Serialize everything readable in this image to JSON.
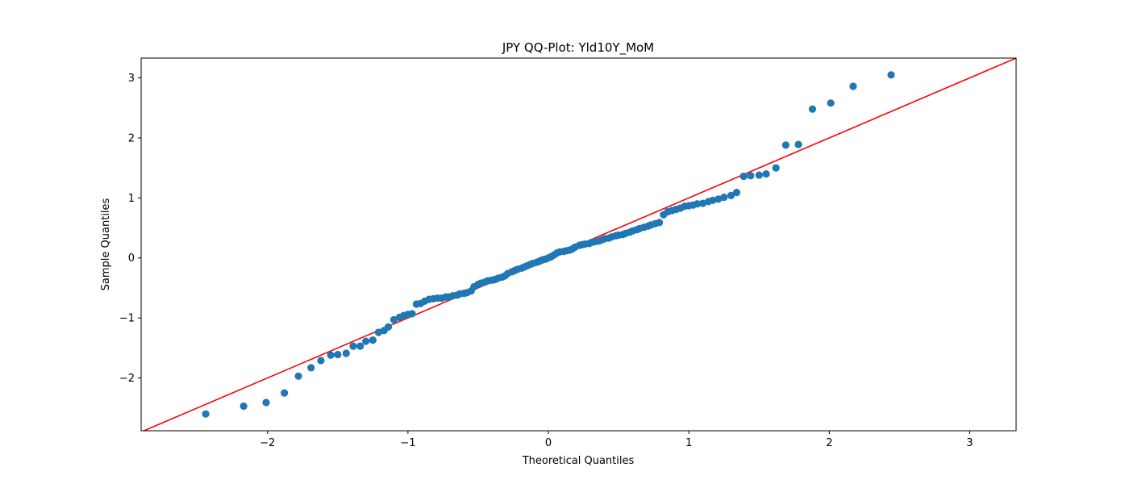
{
  "chart_data": {
    "type": "scatter",
    "title": "JPY QQ-Plot: Yld10Y_MoM",
    "xlabel": "Theoretical Quantiles",
    "ylabel": "Sample Quantiles",
    "xlim": [
      -2.9,
      3.33
    ],
    "ylim": [
      -2.88,
      3.33
    ],
    "xticks": [
      -2,
      -1,
      0,
      1,
      2,
      3
    ],
    "xtick_labels": [
      "−2",
      "−1",
      "0",
      "1",
      "2",
      "3"
    ],
    "yticks": [
      -2,
      -1,
      0,
      1,
      2,
      3
    ],
    "ytick_labels": [
      "−2",
      "−1",
      "0",
      "1",
      "2",
      "3"
    ],
    "grid": false,
    "colors": {
      "points": "#1f77b4",
      "line": "#ff0000"
    },
    "reference_line": {
      "slope": 1.0,
      "intercept": 0.0
    },
    "points": [
      [
        -2.44,
        -2.6
      ],
      [
        -2.17,
        -2.47
      ],
      [
        -2.01,
        -2.41
      ],
      [
        -1.88,
        -2.25
      ],
      [
        -1.78,
        -1.97
      ],
      [
        -1.69,
        -1.83
      ],
      [
        -1.62,
        -1.71
      ],
      [
        -1.55,
        -1.62
      ],
      [
        -1.5,
        -1.61
      ],
      [
        -1.44,
        -1.59
      ],
      [
        -1.39,
        -1.47
      ],
      [
        -1.34,
        -1.47
      ],
      [
        -1.3,
        -1.39
      ],
      [
        -1.25,
        -1.37
      ],
      [
        -1.21,
        -1.24
      ],
      [
        -1.17,
        -1.21
      ],
      [
        -1.14,
        -1.15
      ],
      [
        -1.1,
        -1.03
      ],
      [
        -1.06,
        -0.99
      ],
      [
        -1.03,
        -0.96
      ],
      [
        -1.0,
        -0.94
      ],
      [
        -0.97,
        -0.93
      ],
      [
        -0.94,
        -0.77
      ],
      [
        -0.91,
        -0.76
      ],
      [
        -0.88,
        -0.72
      ],
      [
        -0.85,
        -0.69
      ],
      [
        -0.82,
        -0.68
      ],
      [
        -0.79,
        -0.67
      ],
      [
        -0.76,
        -0.67
      ],
      [
        -0.73,
        -0.65
      ],
      [
        -0.71,
        -0.65
      ],
      [
        -0.68,
        -0.63
      ],
      [
        -0.65,
        -0.62
      ],
      [
        -0.63,
        -0.6
      ],
      [
        -0.6,
        -0.59
      ],
      [
        -0.58,
        -0.58
      ],
      [
        -0.55,
        -0.55
      ],
      [
        -0.53,
        -0.48
      ],
      [
        -0.5,
        -0.44
      ],
      [
        -0.48,
        -0.42
      ],
      [
        -0.45,
        -0.4
      ],
      [
        -0.43,
        -0.38
      ],
      [
        -0.4,
        -0.37
      ],
      [
        -0.38,
        -0.36
      ],
      [
        -0.36,
        -0.34
      ],
      [
        -0.33,
        -0.32
      ],
      [
        -0.31,
        -0.3
      ],
      [
        -0.29,
        -0.26
      ],
      [
        -0.26,
        -0.23
      ],
      [
        -0.24,
        -0.21
      ],
      [
        -0.22,
        -0.19
      ],
      [
        -0.19,
        -0.17
      ],
      [
        -0.17,
        -0.15
      ],
      [
        -0.15,
        -0.13
      ],
      [
        -0.13,
        -0.11
      ],
      [
        -0.11,
        -0.09
      ],
      [
        -0.08,
        -0.07
      ],
      [
        -0.06,
        -0.05
      ],
      [
        -0.04,
        -0.03
      ],
      [
        -0.02,
        -0.02
      ],
      [
        0.0,
        0.0
      ],
      [
        0.02,
        0.02
      ],
      [
        0.04,
        0.05
      ],
      [
        0.06,
        0.08
      ],
      [
        0.08,
        0.1
      ],
      [
        0.11,
        0.11
      ],
      [
        0.13,
        0.12
      ],
      [
        0.15,
        0.13
      ],
      [
        0.17,
        0.15
      ],
      [
        0.19,
        0.18
      ],
      [
        0.22,
        0.21
      ],
      [
        0.24,
        0.22
      ],
      [
        0.26,
        0.23
      ],
      [
        0.29,
        0.24
      ],
      [
        0.31,
        0.26
      ],
      [
        0.33,
        0.27
      ],
      [
        0.36,
        0.28
      ],
      [
        0.38,
        0.3
      ],
      [
        0.4,
        0.32
      ],
      [
        0.43,
        0.33
      ],
      [
        0.45,
        0.35
      ],
      [
        0.48,
        0.37
      ],
      [
        0.5,
        0.38
      ],
      [
        0.53,
        0.39
      ],
      [
        0.55,
        0.41
      ],
      [
        0.58,
        0.43
      ],
      [
        0.6,
        0.45
      ],
      [
        0.63,
        0.47
      ],
      [
        0.65,
        0.49
      ],
      [
        0.68,
        0.51
      ],
      [
        0.71,
        0.53
      ],
      [
        0.73,
        0.55
      ],
      [
        0.76,
        0.57
      ],
      [
        0.79,
        0.59
      ],
      [
        0.82,
        0.72
      ],
      [
        0.85,
        0.77
      ],
      [
        0.88,
        0.79
      ],
      [
        0.91,
        0.81
      ],
      [
        0.94,
        0.83
      ],
      [
        0.97,
        0.86
      ],
      [
        1.0,
        0.87
      ],
      [
        1.03,
        0.88
      ],
      [
        1.06,
        0.9
      ],
      [
        1.1,
        0.91
      ],
      [
        1.14,
        0.94
      ],
      [
        1.17,
        0.96
      ],
      [
        1.21,
        0.98
      ],
      [
        1.25,
        1.01
      ],
      [
        1.3,
        1.04
      ],
      [
        1.34,
        1.09
      ],
      [
        1.39,
        1.36
      ],
      [
        1.44,
        1.37
      ],
      [
        1.5,
        1.38
      ],
      [
        1.55,
        1.4
      ],
      [
        1.62,
        1.5
      ],
      [
        1.69,
        1.88
      ],
      [
        1.78,
        1.89
      ],
      [
        1.88,
        2.48
      ],
      [
        2.01,
        2.58
      ],
      [
        2.17,
        2.86
      ],
      [
        2.44,
        3.05
      ]
    ]
  }
}
